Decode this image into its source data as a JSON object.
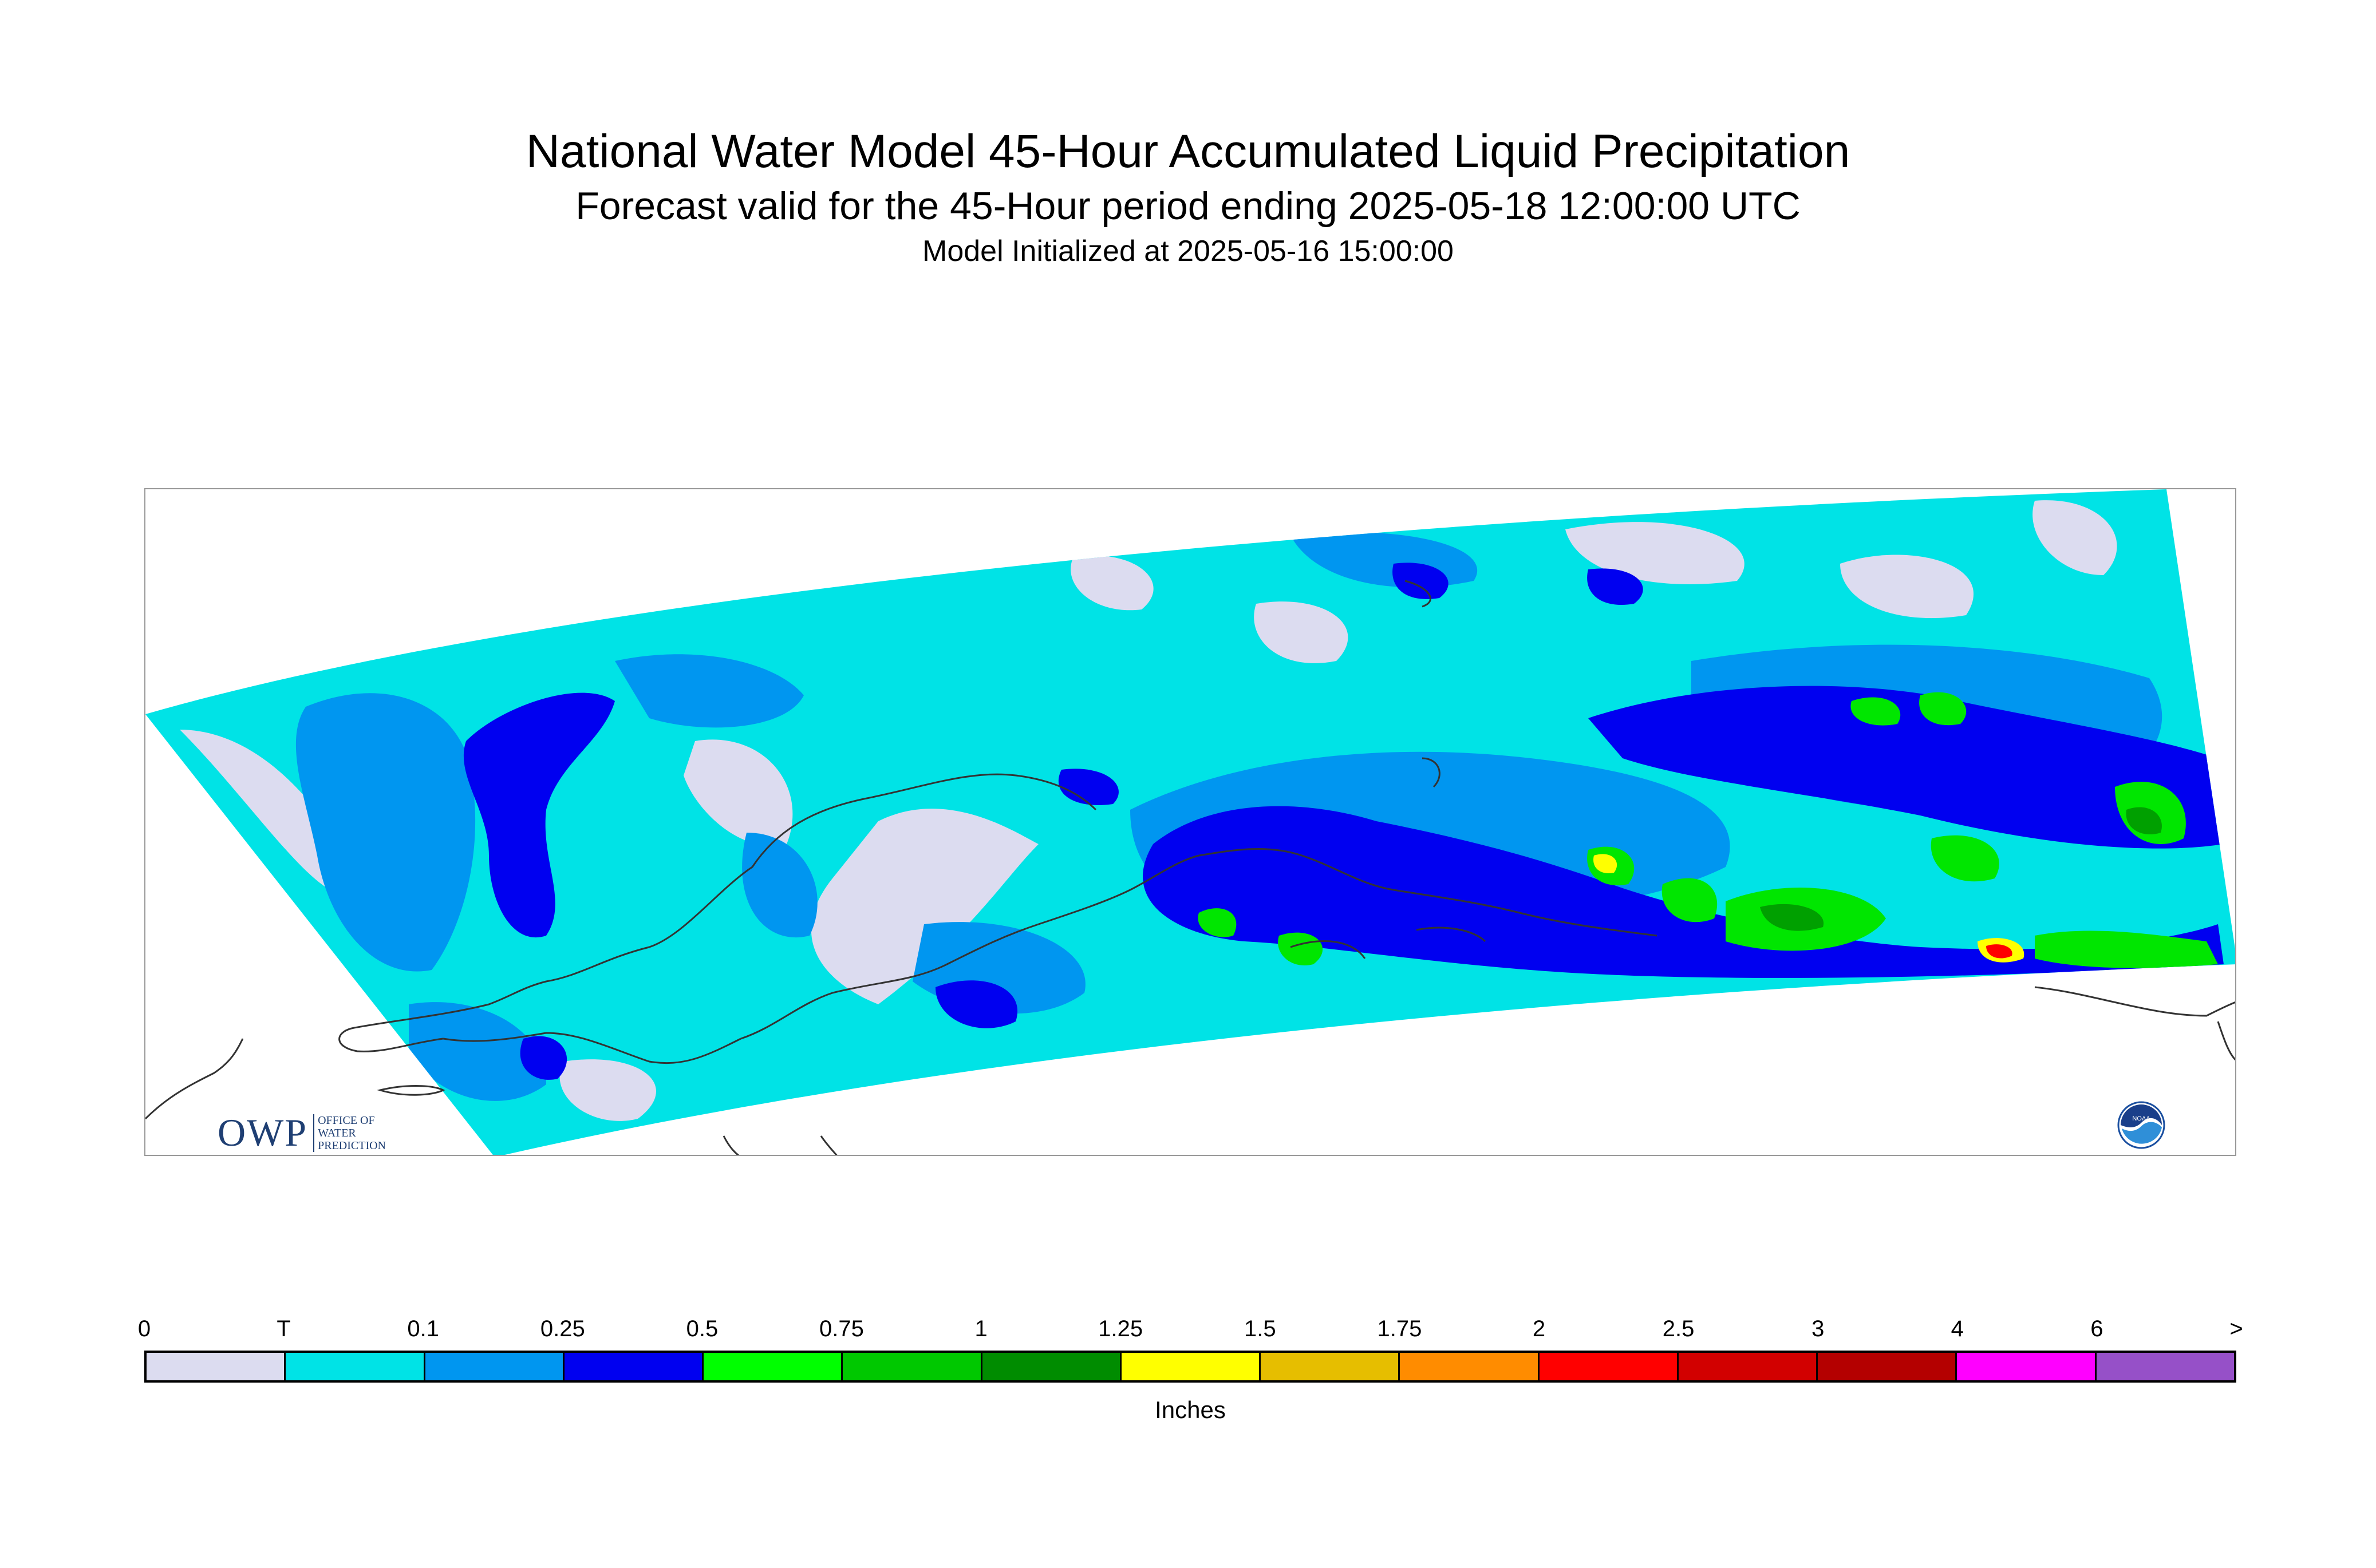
{
  "header": {
    "title": "National Water Model 45-Hour Accumulated Liquid Precipitation",
    "subtitle": "Forecast valid for the 45-Hour period ending 2025-05-18 12:00:00 UTC",
    "init_line": "Model Initialized at 2025-05-16 15:00:00"
  },
  "logos": {
    "owp": {
      "big": "OWP",
      "small_lines": [
        "OFFICE OF",
        "WATER",
        "PREDICTION"
      ]
    },
    "noaa": {
      "text": "NOAA"
    }
  },
  "legend": {
    "tick_labels": [
      "0",
      "T",
      "0.1",
      "0.25",
      "0.5",
      "0.75",
      "1",
      "1.25",
      "1.5",
      "1.75",
      "2",
      "2.5",
      "3",
      "4",
      "6",
      ">"
    ],
    "colors": [
      "#dcdcf0",
      "#00e3e6",
      "#0096f0",
      "#0000f0",
      "#00ff00",
      "#00c800",
      "#008c00",
      "#ffff00",
      "#e6be00",
      "#ff8c00",
      "#ff0000",
      "#d20000",
      "#b40000",
      "#ff00ff",
      "#9650c8"
    ],
    "units_label": "Inches"
  },
  "map_colors": {
    "zero": "#dcdcf0",
    "trace": "#00e3e6",
    "light": "#0096f0",
    "moderate": "#0000f0",
    "green": "#00e600",
    "darkgreen": "#00a000",
    "yellow": "#ffff00",
    "red": "#ff0000",
    "coast": "#333333"
  }
}
